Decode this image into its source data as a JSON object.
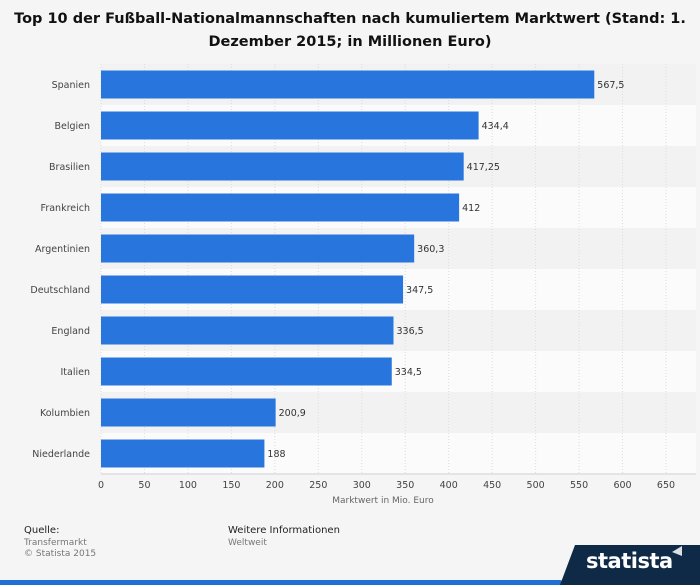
{
  "title": "Top 10 der Fußball-Nationalmannschaften nach kumuliertem Marktwert (Stand: 1. Dezember 2015; in Millionen Euro)",
  "chart_data": {
    "type": "bar",
    "orientation": "horizontal",
    "categories": [
      "Spanien",
      "Belgien",
      "Brasilien",
      "Frankreich",
      "Argentinien",
      "Deutschland",
      "England",
      "Italien",
      "Kolumbien",
      "Niederlande"
    ],
    "values": [
      567.5,
      434.4,
      417.25,
      412,
      360.3,
      347.5,
      336.5,
      334.5,
      200.9,
      188
    ],
    "value_labels": [
      "567,5",
      "434,4",
      "417,25",
      "412",
      "360,3",
      "347,5",
      "336,5",
      "334,5",
      "200,9",
      "188"
    ],
    "xlabel": "Marktwert in Mio. Euro",
    "xlim": [
      0,
      650
    ],
    "xticks": [
      0,
      50,
      100,
      150,
      200,
      250,
      300,
      350,
      400,
      450,
      500,
      550,
      600,
      650
    ],
    "bar_color": "#2876dd",
    "grid": true
  },
  "source": {
    "heading": "Quelle:",
    "line1": "Transfermarkt",
    "line2": "© Statista 2015"
  },
  "info": {
    "heading": "Weitere Informationen",
    "line1": "Weltweit"
  },
  "brand": {
    "name": "statista",
    "color_dark": "#0e2a47",
    "color_accent": "#1f6fd6"
  }
}
